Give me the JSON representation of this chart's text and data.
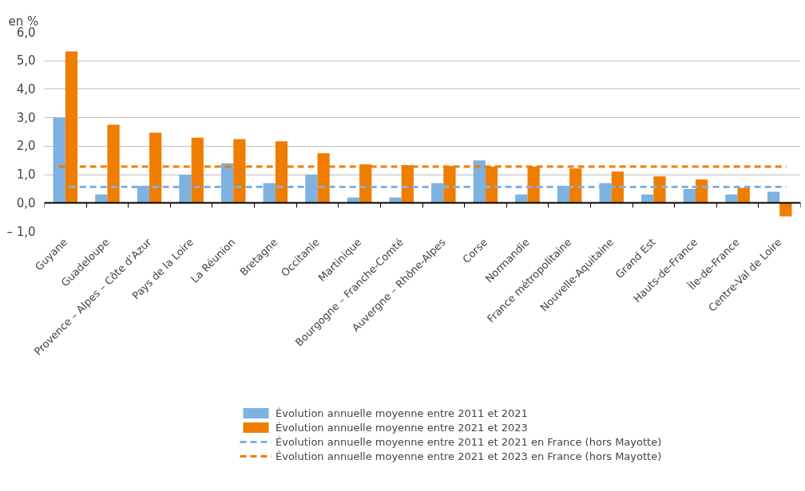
{
  "chart_data": {
    "type": "bar",
    "ylabel": "en %",
    "categories": [
      "Guyane",
      "Guadeloupe",
      "Provence – Alpes – Côte d’Azur",
      "Pays de la Loire",
      "La Réunion",
      "Bretagne",
      "Occitanie",
      "Martinique",
      "Bourgogne – Franche-Comté",
      "Auvergne – Rhône-Alpes",
      "Corse",
      "Normandie",
      "France métropolitaine",
      "Nouvelle-Aquitaine",
      "Grand Est",
      "Hauts-de-France",
      "Île-de-France",
      "Centre-Val de Loire"
    ],
    "series": [
      {
        "name": "Évolution annuelle moyenne entre 2011 et 2021",
        "color": "#7eb2e0",
        "values": [
          3.0,
          0.3,
          0.6,
          1.0,
          1.4,
          0.7,
          1.0,
          0.2,
          0.2,
          0.7,
          1.5,
          0.3,
          0.6,
          0.7,
          0.3,
          0.5,
          0.3,
          0.4
        ]
      },
      {
        "name": "Évolution annuelle moyenne entre 2021 et 2023",
        "color": "#ef7d00",
        "values": [
          5.33,
          2.75,
          2.47,
          2.3,
          2.25,
          2.17,
          1.75,
          1.36,
          1.33,
          1.3,
          1.28,
          1.28,
          1.22,
          1.11,
          0.94,
          0.83,
          0.53,
          -0.47
        ]
      }
    ],
    "ref_lines": [
      {
        "axis": "y",
        "value": 0.57,
        "label": "Évolution annuelle moyenne entre 2011 et 2021 en France (hors Mayotte)",
        "color": "#7eb2e0",
        "line_style": "dashed"
      },
      {
        "axis": "y",
        "value": 1.28,
        "label": "Évolution annuelle moyenne entre 2021 et 2023 en France (hors Mayotte)",
        "color": "#ef7d00",
        "line_style": "dashed"
      }
    ],
    "ylim": [
      -1.0,
      6.0
    ],
    "yticks": [
      {
        "value": -1.0,
        "label": "– 1,0"
      },
      {
        "value": 0.0,
        "label": "0,0"
      },
      {
        "value": 1.0,
        "label": "1,0"
      },
      {
        "value": 2.0,
        "label": "2,0"
      },
      {
        "value": 3.0,
        "label": "3,0"
      },
      {
        "value": 4.0,
        "label": "4,0"
      },
      {
        "value": 5.0,
        "label": "5,0"
      },
      {
        "value": 6.0,
        "label": "6,0"
      }
    ],
    "grid": "y",
    "legend": "bottom"
  }
}
